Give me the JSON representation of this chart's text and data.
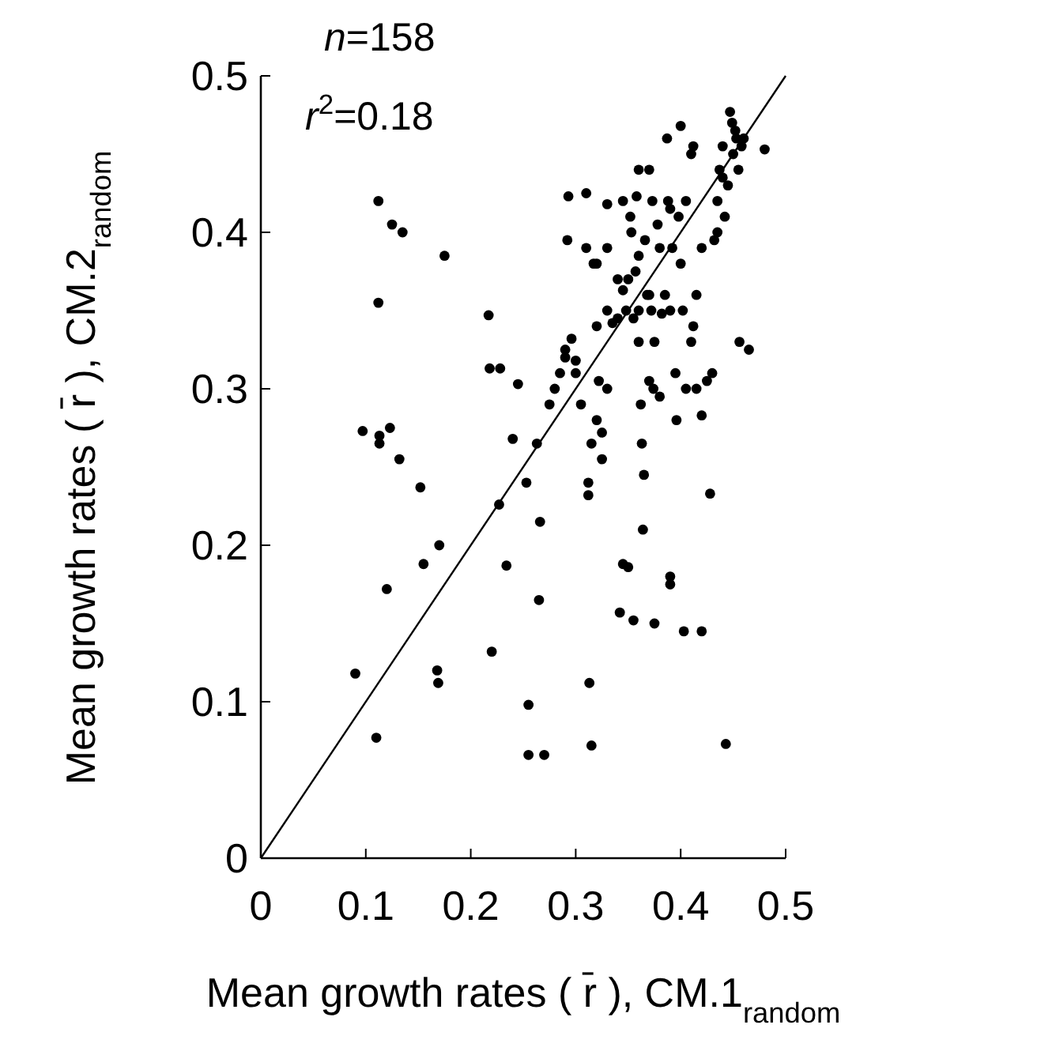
{
  "chart_data": {
    "type": "scatter",
    "xlabel": "Mean growth rates ( r̄ ), CM.1$_{random}$",
    "ylabel": "Mean growth rates ( r̄ ), CM.2$_{random}$",
    "annotations": [
      "n=158",
      "r$^{2}$=0.18"
    ],
    "xlim": [
      0,
      0.5
    ],
    "ylim": [
      0,
      0.5
    ],
    "xticks": [
      0,
      0.1,
      0.2,
      0.3,
      0.4,
      0.5
    ],
    "yticks": [
      0,
      0.1,
      0.2,
      0.3,
      0.4,
      0.5
    ],
    "grid": false,
    "marker": "circle",
    "series": [
      {
        "color": "#000000",
        "x": [
          0.09,
          0.097,
          0.11,
          0.112,
          0.112,
          0.113,
          0.113,
          0.12,
          0.123,
          0.125,
          0.132,
          0.135,
          0.152,
          0.155,
          0.168,
          0.169,
          0.17,
          0.175,
          0.217,
          0.218,
          0.22,
          0.227,
          0.228,
          0.234,
          0.24,
          0.245,
          0.253,
          0.255,
          0.255,
          0.263,
          0.265,
          0.266,
          0.27,
          0.275,
          0.28,
          0.285,
          0.29,
          0.29,
          0.292,
          0.293,
          0.296,
          0.3,
          0.305,
          0.31,
          0.31,
          0.312,
          0.312,
          0.313,
          0.315,
          0.315,
          0.317,
          0.32,
          0.32,
          0.322,
          0.325,
          0.325,
          0.33,
          0.33,
          0.335,
          0.34,
          0.34,
          0.342,
          0.345,
          0.345,
          0.348,
          0.35,
          0.35,
          0.352,
          0.353,
          0.355,
          0.355,
          0.357,
          0.358,
          0.36,
          0.36,
          0.36,
          0.362,
          0.363,
          0.364,
          0.365,
          0.366,
          0.368,
          0.37,
          0.37,
          0.372,
          0.373,
          0.374,
          0.375,
          0.375,
          0.378,
          0.38,
          0.382,
          0.385,
          0.387,
          0.388,
          0.39,
          0.39,
          0.39,
          0.392,
          0.395,
          0.396,
          0.398,
          0.4,
          0.4,
          0.402,
          0.403,
          0.405,
          0.405,
          0.41,
          0.412,
          0.412,
          0.415,
          0.415,
          0.42,
          0.42,
          0.425,
          0.428,
          0.43,
          0.432,
          0.435,
          0.435,
          0.437,
          0.44,
          0.44,
          0.442,
          0.443,
          0.445,
          0.447,
          0.449,
          0.45,
          0.452,
          0.453,
          0.455,
          0.456,
          0.458,
          0.46,
          0.465,
          0.48,
          0.33,
          0.345,
          0.32,
          0.3,
          0.38,
          0.36,
          0.39,
          0.41,
          0.42,
          0.33,
          0.37
        ],
        "values": [
          0.118,
          0.273,
          0.077,
          0.42,
          0.355,
          0.27,
          0.265,
          0.172,
          0.275,
          0.405,
          0.255,
          0.4,
          0.237,
          0.188,
          0.12,
          0.112,
          0.2,
          0.385,
          0.347,
          0.313,
          0.132,
          0.226,
          0.313,
          0.187,
          0.268,
          0.303,
          0.24,
          0.098,
          0.066,
          0.265,
          0.165,
          0.215,
          0.066,
          0.29,
          0.3,
          0.31,
          0.325,
          0.32,
          0.395,
          0.423,
          0.332,
          0.318,
          0.29,
          0.39,
          0.425,
          0.24,
          0.232,
          0.112,
          0.072,
          0.265,
          0.38,
          0.38,
          0.28,
          0.305,
          0.272,
          0.255,
          0.418,
          0.39,
          0.342,
          0.37,
          0.345,
          0.157,
          0.188,
          0.42,
          0.35,
          0.37,
          0.186,
          0.41,
          0.4,
          0.152,
          0.345,
          0.375,
          0.423,
          0.44,
          0.385,
          0.35,
          0.29,
          0.265,
          0.21,
          0.245,
          0.395,
          0.36,
          0.36,
          0.44,
          0.35,
          0.42,
          0.3,
          0.15,
          0.33,
          0.405,
          0.295,
          0.348,
          0.36,
          0.46,
          0.42,
          0.35,
          0.18,
          0.175,
          0.39,
          0.31,
          0.28,
          0.41,
          0.468,
          0.38,
          0.35,
          0.145,
          0.42,
          0.3,
          0.45,
          0.455,
          0.34,
          0.3,
          0.36,
          0.283,
          0.145,
          0.305,
          0.233,
          0.31,
          0.395,
          0.42,
          0.4,
          0.44,
          0.455,
          0.435,
          0.41,
          0.073,
          0.43,
          0.477,
          0.47,
          0.45,
          0.465,
          0.46,
          0.44,
          0.33,
          0.455,
          0.46,
          0.325,
          0.453,
          0.35,
          0.363,
          0.34,
          0.31,
          0.39,
          0.33,
          0.415,
          0.33,
          0.39,
          0.3,
          0.305
        ]
      },
      {
        "type": "line",
        "color": "#000000",
        "x": [
          0,
          0.5
        ],
        "values": [
          0,
          0.5
        ],
        "marker": "none"
      }
    ]
  }
}
